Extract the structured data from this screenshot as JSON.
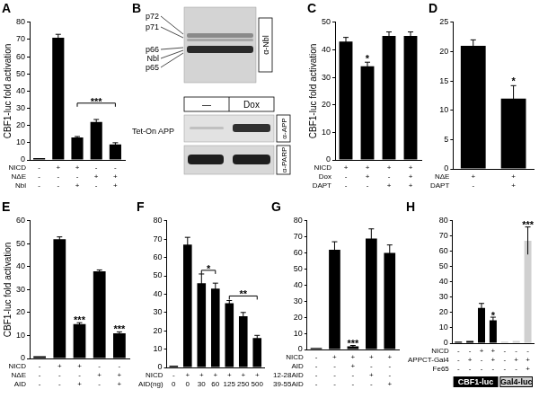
{
  "chart_data": [
    {
      "type": "bar",
      "title": "A",
      "y_label": "CBF1-luc fold activation",
      "categories": [
        null,
        null,
        null,
        null,
        null
      ],
      "values": [
        1,
        71,
        13,
        22,
        9
      ],
      "errors": [
        0,
        2,
        0.6,
        1.5,
        1
      ],
      "color": "#000000",
      "ylim": [
        0,
        80
      ],
      "yticks": [
        0,
        10,
        20,
        30,
        40,
        50,
        60,
        70,
        80
      ],
      "grid": false,
      "tick_labels": "y",
      "conditions": [
        {
          "label": "NICD",
          "marks": [
            "-",
            "+",
            "+",
            "-",
            "-"
          ]
        },
        {
          "label": "NΔE",
          "marks": [
            "-",
            "-",
            "-",
            "+",
            "+"
          ]
        },
        {
          "label": "Nbl",
          "marks": [
            "-",
            "-",
            "+",
            "-",
            "+"
          ]
        }
      ],
      "annotations": [
        {
          "text": "***",
          "from": 2,
          "to": 4,
          "y": 33
        }
      ]
    },
    {
      "type": "bar",
      "title": "C",
      "y_label": "CBF1-luc fold activation",
      "categories": [
        null,
        null,
        null,
        null
      ],
      "values": [
        43,
        34,
        45,
        45
      ],
      "errors": [
        1.5,
        1.5,
        1.5,
        1.5
      ],
      "color": "#000000",
      "ylim": [
        0,
        50
      ],
      "yticks": [
        0,
        10,
        20,
        30,
        40,
        50
      ],
      "grid": false,
      "tick_labels": "y",
      "conditions": [
        {
          "label": "NICD",
          "marks": [
            "+",
            "+",
            "+",
            "+"
          ]
        },
        {
          "label": "Dox",
          "marks": [
            "-",
            "+",
            "-",
            "+"
          ]
        },
        {
          "label": "DAPT",
          "marks": [
            "-",
            "-",
            "+",
            "+"
          ]
        }
      ],
      "annotations": [
        {
          "text": "*",
          "from": 1,
          "to": 1,
          "y": 36.5
        }
      ]
    },
    {
      "type": "bar",
      "title": "D",
      "categories": [
        null,
        null
      ],
      "values": [
        21,
        12
      ],
      "errors": [
        1,
        2.2
      ],
      "color": "#000000",
      "ylim": [
        0,
        25
      ],
      "yticks": [
        0,
        5,
        10,
        15,
        20,
        25
      ],
      "grid": false,
      "tick_labels": "y",
      "conditions": [
        {
          "label": "NΔE",
          "marks": [
            "+",
            "+"
          ]
        },
        {
          "label": "DAPT",
          "marks": [
            "-",
            "+"
          ]
        }
      ],
      "annotations": [
        {
          "text": "*",
          "from": 1,
          "to": 1,
          "y": 14.8
        }
      ]
    },
    {
      "type": "bar",
      "title": "E",
      "y_label": "CBF1-luc fold activation",
      "categories": [
        null,
        null,
        null,
        null,
        null
      ],
      "values": [
        1,
        52,
        15,
        38,
        11
      ],
      "errors": [
        0,
        1,
        0.6,
        0.6,
        0.6
      ],
      "color": "#000000",
      "ylim": [
        0,
        60
      ],
      "yticks": [
        0,
        10,
        20,
        30,
        40,
        50,
        60
      ],
      "grid": false,
      "tick_labels": "y",
      "conditions": [
        {
          "label": "NICD",
          "marks": [
            "-",
            "+",
            "+",
            "-",
            "-"
          ]
        },
        {
          "label": "NΔE",
          "marks": [
            "-",
            "-",
            "-",
            "+",
            "+"
          ]
        },
        {
          "label": "AID",
          "marks": [
            "-",
            "-",
            "+",
            "-",
            "+"
          ]
        }
      ],
      "annotations": [
        {
          "text": "***",
          "from": 2,
          "to": 2,
          "y": 16.5
        },
        {
          "text": "***",
          "from": 4,
          "to": 4,
          "y": 12.5
        }
      ]
    },
    {
      "type": "bar",
      "title": "F",
      "categories": [
        null,
        null,
        null,
        null,
        null,
        null,
        null
      ],
      "values": [
        1,
        67,
        46,
        43,
        35,
        28,
        16
      ],
      "errors": [
        0,
        4,
        5,
        3,
        1.5,
        2,
        1.5
      ],
      "color": "#000000",
      "ylim": [
        0,
        80
      ],
      "yticks": [
        0,
        10,
        20,
        30,
        40,
        50,
        60,
        70,
        80
      ],
      "grid": false,
      "tick_labels": "y",
      "conditions": [
        {
          "label": "NICD",
          "marks": [
            "-",
            "+",
            "+",
            "+",
            "+",
            "+",
            "+"
          ]
        },
        {
          "label": "AID(ng)",
          "marks": [
            "0",
            "0",
            "30",
            "60",
            "125",
            "250",
            "500"
          ]
        }
      ],
      "annotations": [
        {
          "text": "*",
          "from": 2,
          "to": 3,
          "y": 53
        },
        {
          "text": "**",
          "from": 4,
          "to": 6,
          "y": 39
        }
      ]
    },
    {
      "type": "bar",
      "title": "G",
      "categories": [
        null,
        null,
        null,
        null,
        null
      ],
      "values": [
        1,
        62,
        2,
        69,
        60
      ],
      "errors": [
        0,
        5,
        0.5,
        6,
        5
      ],
      "color": "#000000",
      "ylim": [
        0,
        80
      ],
      "yticks": [
        0,
        10,
        20,
        30,
        40,
        50,
        60,
        70,
        80
      ],
      "grid": false,
      "tick_labels": "y",
      "conditions": [
        {
          "label": "NICD",
          "marks": [
            "-",
            "+",
            "+",
            "+",
            "+"
          ]
        },
        {
          "label": "AID",
          "marks": [
            "-",
            "-",
            "+",
            "-",
            "-"
          ]
        },
        {
          "label": "12-28AID",
          "marks": [
            "-",
            "-",
            "-",
            "+",
            "-"
          ]
        },
        {
          "label": "39-55AID",
          "marks": [
            "-",
            "-",
            "-",
            "-",
            "+"
          ]
        }
      ],
      "annotations": [
        {
          "text": "***",
          "from": 2,
          "to": 2,
          "y": 3.5
        }
      ]
    },
    {
      "type": "bar",
      "title": "H",
      "categories": [
        null,
        null,
        null,
        null,
        null,
        null,
        null
      ],
      "series": [
        {
          "name": "CBF1-luc",
          "color": "#000000",
          "values": [
            1,
            1.5,
            23,
            15,
            null,
            null,
            null
          ],
          "errors": [
            0,
            0,
            3,
            2,
            null,
            null,
            null
          ]
        },
        {
          "name": "Gal4-luc",
          "color": "#d0d0d0",
          "values": [
            null,
            null,
            null,
            null,
            1,
            1.5,
            67
          ],
          "errors": [
            null,
            null,
            null,
            null,
            0,
            0,
            9
          ]
        }
      ],
      "ylim": [
        0,
        80
      ],
      "yticks": [
        0,
        10,
        20,
        30,
        40,
        50,
        60,
        70,
        80
      ],
      "grid": false,
      "tick_labels": "y",
      "legend": "bottom",
      "conditions": [
        {
          "label": "NICD",
          "marks": [
            "-",
            "-",
            "+",
            "+",
            "-",
            "-",
            "-"
          ]
        },
        {
          "label": "APPCT-Gal4",
          "marks": [
            "-",
            "+",
            "-",
            "+",
            "-",
            "+",
            "+"
          ]
        },
        {
          "label": "Fe65",
          "marks": [
            "-",
            "-",
            "-",
            "-",
            "-",
            "-",
            "+"
          ]
        }
      ],
      "annotations": [
        {
          "text": "*",
          "from": 3,
          "to": 3,
          "y": 17.5
        },
        {
          "text": "***",
          "from": 6,
          "to": 6,
          "y": 77
        }
      ]
    }
  ],
  "blot": {
    "title": "B",
    "upper": {
      "antibody": "α-Nbl",
      "bands": [
        "p72",
        "p71",
        "p66",
        "Nbl",
        "p65"
      ]
    },
    "lower": {
      "sample_label": "Tet-On APP",
      "lanes": [
        "—",
        "Dox"
      ],
      "antibodies": [
        "α-APP",
        "α-PARP"
      ]
    }
  }
}
